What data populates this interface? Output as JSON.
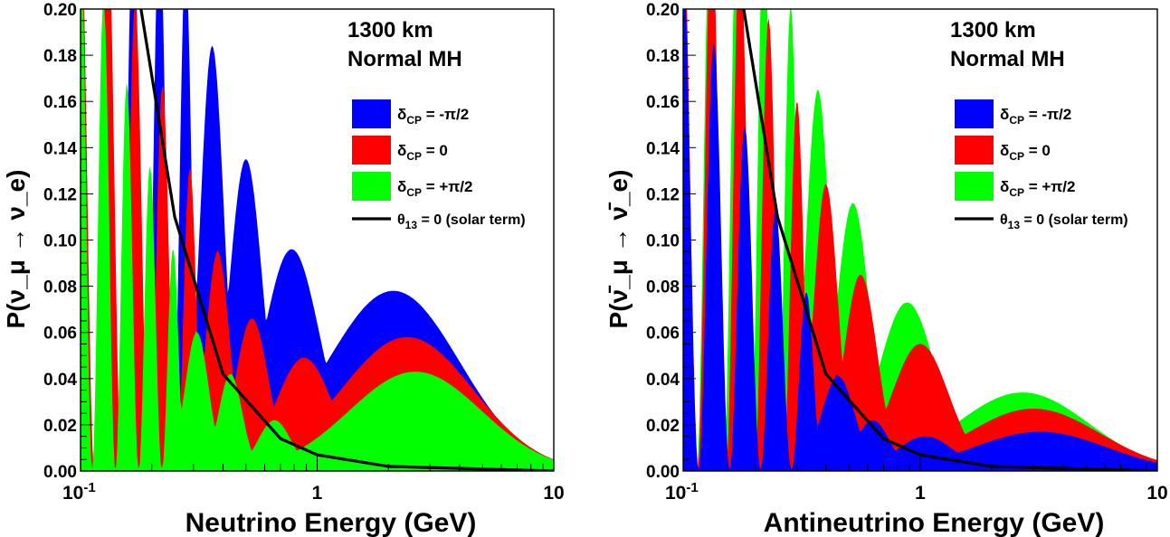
{
  "chart_data": [
    {
      "type": "area",
      "panel": "neutrino",
      "annotation": [
        "1300 km",
        "Normal MH"
      ],
      "xlabel": "Neutrino Energy (GeV)",
      "ylabel": "P(ν_μ → ν_e)",
      "xscale": "log",
      "xlim": [
        0.1,
        10
      ],
      "ylim": [
        0,
        0.2
      ],
      "xticks": [
        "10^-1",
        "1",
        "10"
      ],
      "yticks": [
        "0.00",
        "0.02",
        "0.04",
        "0.06",
        "0.08",
        "0.10",
        "0.12",
        "0.14",
        "0.16",
        "0.18",
        "0.20"
      ],
      "legend": {
        "placement": "right",
        "entries": [
          "δ_CP = -π/2",
          "δ_CP = 0",
          "δ_CP = +π/2",
          "θ_13 = 0 (solar term)"
        ]
      },
      "colors": {
        "minus_pi_2": "#0000ff",
        "zero": "#ff0000",
        "plus_pi_2": "#00ff00",
        "solar": "#000000"
      },
      "series": [
        {
          "name": "δ_CP = -π/2",
          "first_max_gev": 2.1,
          "first_max_p": 0.078,
          "second_max_gev": 0.78,
          "second_max_p": 0.096,
          "third_max_gev": 0.5,
          "third_max_p": 0.135,
          "fourth_max_gev": 0.36,
          "fourth_max_p": 0.184
        },
        {
          "name": "δ_CP = 0",
          "first_max_gev": 2.4,
          "first_max_p": 0.058,
          "second_max_gev": 0.88,
          "second_max_p": 0.049,
          "third_max_gev": 0.53,
          "third_max_p": 0.066,
          "fourth_max_gev": 0.38,
          "fourth_max_p": 0.095
        },
        {
          "name": "δ_CP = +π/2",
          "first_max_gev": 2.6,
          "first_max_p": 0.043,
          "second_max_gev": 0.66,
          "second_max_p": 0.022,
          "third_max_gev": 0.43,
          "third_max_p": 0.042,
          "fourth_max_gev": 0.31,
          "fourth_max_p": 0.06
        },
        {
          "name": "θ_13 = 0 (solar term)",
          "x": [
            0.18,
            0.25,
            0.4,
            0.7,
            1.0,
            2.0,
            10.0
          ],
          "y": [
            0.2,
            0.11,
            0.042,
            0.014,
            0.007,
            0.002,
            0.0
          ]
        }
      ]
    },
    {
      "type": "area",
      "panel": "antineutrino",
      "annotation": [
        "1300 km",
        "Normal MH"
      ],
      "xlabel": "Antineutrino Energy (GeV)",
      "ylabel": "P(ν̄_μ → ν̄_e)",
      "xscale": "log",
      "xlim": [
        0.1,
        10
      ],
      "ylim": [
        0,
        0.2
      ],
      "xticks": [
        "10^-1",
        "1",
        "10"
      ],
      "yticks": [
        "0.00",
        "0.02",
        "0.04",
        "0.06",
        "0.08",
        "0.10",
        "0.12",
        "0.14",
        "0.16",
        "0.18",
        "0.20"
      ],
      "legend": {
        "placement": "right",
        "entries": [
          "δ_CP = -π/2",
          "δ_CP = 0",
          "δ_CP = +π/2",
          "θ_13 = 0 (solar term)"
        ]
      },
      "colors": {
        "minus_pi_2": "#0000ff",
        "zero": "#ff0000",
        "plus_pi_2": "#00ff00",
        "solar": "#000000"
      },
      "series": [
        {
          "name": "δ_CP = -π/2",
          "first_max_gev": 3.2,
          "first_max_p": 0.017,
          "second_max_gev": 1.05,
          "second_max_p": 0.015,
          "third_max_gev": 0.63,
          "third_max_p": 0.022,
          "fourth_max_gev": 0.45,
          "fourth_max_p": 0.041
        },
        {
          "name": "δ_CP = 0",
          "first_max_gev": 3.0,
          "first_max_p": 0.027,
          "second_max_gev": 1.0,
          "second_max_p": 0.055,
          "third_max_gev": 0.56,
          "third_max_p": 0.085,
          "fourth_max_gev": 0.4,
          "fourth_max_p": 0.124
        },
        {
          "name": "δ_CP = +π/2",
          "first_max_gev": 2.7,
          "first_max_p": 0.034,
          "second_max_gev": 0.88,
          "second_max_p": 0.073,
          "third_max_gev": 0.52,
          "third_max_p": 0.116,
          "fourth_max_gev": 0.37,
          "fourth_max_p": 0.165
        },
        {
          "name": "θ_13 = 0 (solar term)",
          "x": [
            0.18,
            0.25,
            0.4,
            0.7,
            1.0,
            2.0,
            10.0
          ],
          "y": [
            0.2,
            0.11,
            0.042,
            0.014,
            0.007,
            0.002,
            0.0
          ]
        }
      ]
    }
  ]
}
